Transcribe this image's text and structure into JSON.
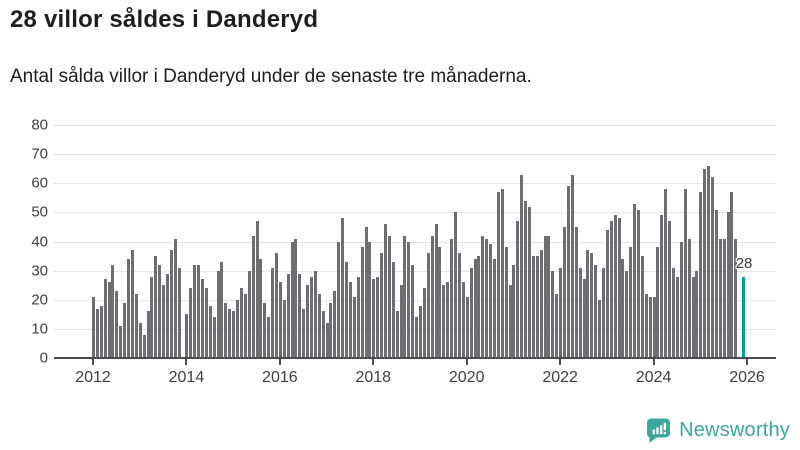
{
  "header": {
    "title": "28 villor såldes i Danderyd",
    "subtitle": "Antal sålda villor i Danderyd under de senaste tre månaderna."
  },
  "chart_data": {
    "type": "bar",
    "title": "28 villor såldes i Danderyd",
    "xlabel": "",
    "ylabel": "",
    "x_unit": "month",
    "x_range": [
      "2012-01",
      "2025-12"
    ],
    "x_tick_years": [
      2012,
      2014,
      2016,
      2018,
      2020,
      2022,
      2024,
      2026
    ],
    "ylim": [
      0,
      80
    ],
    "y_ticks": [
      0,
      10,
      20,
      30,
      40,
      50,
      60,
      70,
      80
    ],
    "grid": true,
    "values": [
      21,
      17,
      18,
      27,
      26,
      32,
      23,
      11,
      19,
      34,
      37,
      22,
      12,
      8,
      16,
      28,
      35,
      32,
      25,
      29,
      37,
      41,
      31,
      0,
      15,
      24,
      32,
      32,
      27,
      24,
      18,
      14,
      30,
      33,
      19,
      17,
      16,
      20,
      24,
      22,
      30,
      42,
      47,
      34,
      19,
      14,
      31,
      36,
      26,
      20,
      29,
      40,
      41,
      29,
      17,
      25,
      28,
      30,
      22,
      16,
      12,
      19,
      23,
      40,
      48,
      33,
      26,
      21,
      28,
      38,
      45,
      40,
      27,
      28,
      36,
      46,
      42,
      33,
      16,
      25,
      42,
      40,
      32,
      14,
      18,
      24,
      36,
      42,
      46,
      38,
      25,
      26,
      41,
      50,
      36,
      26,
      21,
      31,
      34,
      35,
      42,
      41,
      39,
      34,
      57,
      58,
      38,
      25,
      32,
      47,
      63,
      54,
      52,
      35,
      35,
      37,
      42,
      42,
      30,
      22,
      31,
      45,
      59,
      63,
      45,
      31,
      27,
      37,
      36,
      32,
      20,
      31,
      44,
      47,
      49,
      48,
      34,
      30,
      38,
      53,
      51,
      35,
      22,
      21,
      21,
      38,
      49,
      58,
      47,
      31,
      28,
      40,
      58,
      41,
      28,
      30,
      57,
      65,
      66,
      62,
      51,
      41,
      41,
      50,
      57,
      41,
      0,
      28
    ],
    "highlight_index": 167,
    "highlight_value_label": "28",
    "bar_color": "#6e6e72",
    "highlight_color": "#00a09b",
    "gridline_color": "#e4e4e6",
    "axis_color": "#4c4c4f"
  },
  "footer": {
    "brand": "Newsworthy",
    "brand_color": "#3aa79e",
    "logo_icon": "newsworthy-speech-bubble-chart-icon"
  }
}
